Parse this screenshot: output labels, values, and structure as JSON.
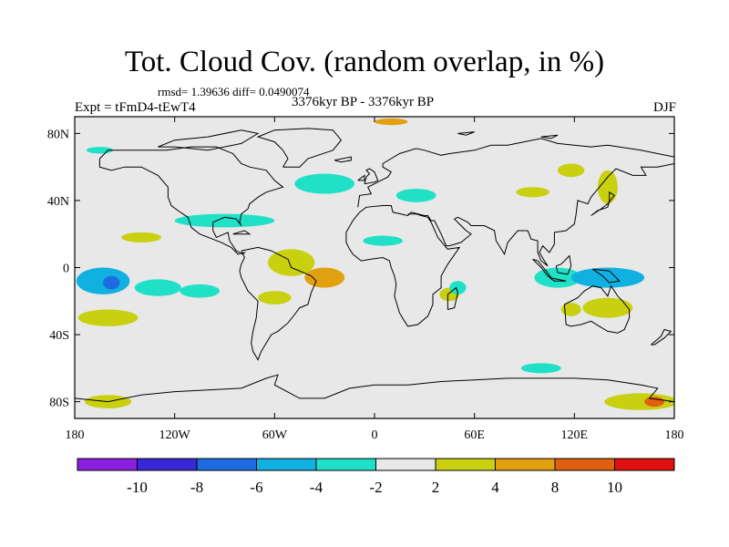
{
  "title": "Tot. Cloud Cov. (random overlap, in %)",
  "stats": "rmsd= 1.39636 diff= 0.0490074",
  "experiment": "Expt = tFmD4-tEwT4",
  "period": "3376kyr BP - 3376kyr BP",
  "season": "DJF",
  "map": {
    "lon_range": [
      -180,
      180
    ],
    "lat_range": [
      -90,
      90
    ],
    "x_ticks": [
      {
        "value": -180,
        "label": "180"
      },
      {
        "value": -120,
        "label": "120W"
      },
      {
        "value": -60,
        "label": "60W"
      },
      {
        "value": 0,
        "label": "0"
      },
      {
        "value": 60,
        "label": "60E"
      },
      {
        "value": 120,
        "label": "120E"
      },
      {
        "value": 180,
        "label": "180"
      }
    ],
    "y_ticks": [
      {
        "value": 80,
        "label": "80N"
      },
      {
        "value": 40,
        "label": "40N"
      },
      {
        "value": 0,
        "label": "0"
      },
      {
        "value": -40,
        "label": "40S"
      },
      {
        "value": -80,
        "label": "80S"
      }
    ],
    "background_color": "#e8e8e8",
    "coastline_color": "#000000"
  },
  "colorbar": {
    "labels": [
      "-10",
      "-8",
      "-6",
      "-4",
      "-2",
      "2",
      "4",
      "8",
      "10"
    ],
    "colors": [
      "#8a1fe0",
      "#3a28d8",
      "#1c6be0",
      "#10b0e0",
      "#20e0c8",
      "#e8e8e8",
      "#c8d010",
      "#e0a010",
      "#e06010",
      "#e01010"
    ]
  },
  "anomalies": [
    {
      "lon": -163,
      "lat": -8,
      "rx": 16,
      "ry": 8,
      "level": 3
    },
    {
      "lon": -158,
      "lat": -9,
      "rx": 5,
      "ry": 4,
      "level": 2
    },
    {
      "lon": -130,
      "lat": -12,
      "rx": 14,
      "ry": 5,
      "level": 4
    },
    {
      "lon": -105,
      "lat": -14,
      "rx": 12,
      "ry": 4,
      "level": 4
    },
    {
      "lon": -140,
      "lat": 18,
      "rx": 12,
      "ry": 3,
      "level": 6
    },
    {
      "lon": -90,
      "lat": 28,
      "rx": 30,
      "ry": 4,
      "level": 4
    },
    {
      "lon": -50,
      "lat": 3,
      "rx": 14,
      "ry": 8,
      "level": 6
    },
    {
      "lon": -30,
      "lat": -6,
      "rx": 12,
      "ry": 6,
      "level": 7
    },
    {
      "lon": -60,
      "lat": -18,
      "rx": 10,
      "ry": 4,
      "level": 6
    },
    {
      "lon": -160,
      "lat": -30,
      "rx": 18,
      "ry": 5,
      "level": 6
    },
    {
      "lon": -30,
      "lat": 50,
      "rx": 18,
      "ry": 6,
      "level": 4
    },
    {
      "lon": 5,
      "lat": 16,
      "rx": 12,
      "ry": 3,
      "level": 4
    },
    {
      "lon": 25,
      "lat": 43,
      "rx": 12,
      "ry": 4,
      "level": 4
    },
    {
      "lon": 110,
      "lat": -6,
      "rx": 14,
      "ry": 6,
      "level": 4
    },
    {
      "lon": 140,
      "lat": -6,
      "rx": 22,
      "ry": 6,
      "level": 3
    },
    {
      "lon": 118,
      "lat": 58,
      "rx": 8,
      "ry": 4,
      "level": 6
    },
    {
      "lon": 140,
      "lat": 48,
      "rx": 6,
      "ry": 10,
      "level": 6
    },
    {
      "lon": 95,
      "lat": 45,
      "rx": 10,
      "ry": 3,
      "level": 6
    },
    {
      "lon": 45,
      "lat": -16,
      "rx": 6,
      "ry": 4,
      "level": 6
    },
    {
      "lon": 50,
      "lat": -12,
      "rx": 5,
      "ry": 4,
      "level": 4
    },
    {
      "lon": 140,
      "lat": -24,
      "rx": 15,
      "ry": 6,
      "level": 6
    },
    {
      "lon": 118,
      "lat": -25,
      "rx": 6,
      "ry": 4,
      "level": 6
    },
    {
      "lon": 160,
      "lat": -80,
      "rx": 22,
      "ry": 5,
      "level": 6
    },
    {
      "lon": 168,
      "lat": -80,
      "rx": 6,
      "ry": 3,
      "level": 8
    },
    {
      "lon": -160,
      "lat": -80,
      "rx": 14,
      "ry": 4,
      "level": 6
    },
    {
      "lon": -165,
      "lat": 70,
      "rx": 8,
      "ry": 2,
      "level": 4
    },
    {
      "lon": 10,
      "lat": 87,
      "rx": 10,
      "ry": 2,
      "level": 7
    },
    {
      "lon": 100,
      "lat": -60,
      "rx": 12,
      "ry": 3,
      "level": 4
    }
  ],
  "coastlines": [
    [
      [
        -165,
        65
      ],
      [
        -160,
        70
      ],
      [
        -140,
        70
      ],
      [
        -125,
        70
      ],
      [
        -110,
        72
      ],
      [
        -95,
        72
      ],
      [
        -85,
        68
      ],
      [
        -80,
        62
      ],
      [
        -75,
        60
      ],
      [
        -65,
        58
      ],
      [
        -60,
        52
      ],
      [
        -55,
        48
      ],
      [
        -65,
        45
      ],
      [
        -70,
        42
      ],
      [
        -75,
        38
      ],
      [
        -76,
        35
      ],
      [
        -80,
        32
      ],
      [
        -81,
        27
      ],
      [
        -80,
        25
      ],
      [
        -83,
        29
      ],
      [
        -90,
        30
      ],
      [
        -97,
        27
      ],
      [
        -97,
        22
      ],
      [
        -95,
        18
      ],
      [
        -88,
        21
      ],
      [
        -87,
        16
      ],
      [
        -83,
        10
      ],
      [
        -79,
        8
      ],
      [
        -78,
        9
      ],
      [
        -82,
        8
      ],
      [
        -86,
        12
      ],
      [
        -92,
        15
      ],
      [
        -105,
        20
      ],
      [
        -110,
        24
      ],
      [
        -112,
        30
      ],
      [
        -115,
        32
      ],
      [
        -118,
        34
      ],
      [
        -122,
        37
      ],
      [
        -124,
        42
      ],
      [
        -124,
        48
      ],
      [
        -130,
        55
      ],
      [
        -140,
        60
      ],
      [
        -150,
        60
      ],
      [
        -158,
        58
      ],
      [
        -165,
        60
      ],
      [
        -165,
        65
      ]
    ],
    [
      [
        -80,
        10
      ],
      [
        -75,
        11
      ],
      [
        -70,
        12
      ],
      [
        -62,
        10
      ],
      [
        -52,
        5
      ],
      [
        -50,
        0
      ],
      [
        -45,
        -2
      ],
      [
        -38,
        -5
      ],
      [
        -35,
        -8
      ],
      [
        -38,
        -15
      ],
      [
        -40,
        -22
      ],
      [
        -45,
        -24
      ],
      [
        -48,
        -28
      ],
      [
        -52,
        -33
      ],
      [
        -58,
        -38
      ],
      [
        -62,
        -40
      ],
      [
        -65,
        -45
      ],
      [
        -68,
        -50
      ],
      [
        -70,
        -55
      ],
      [
        -73,
        -50
      ],
      [
        -74,
        -45
      ],
      [
        -73,
        -38
      ],
      [
        -71,
        -30
      ],
      [
        -70,
        -20
      ],
      [
        -76,
        -14
      ],
      [
        -80,
        -6
      ],
      [
        -81,
        -2
      ],
      [
        -80,
        2
      ],
      [
        -78,
        6
      ],
      [
        -80,
        10
      ]
    ],
    [
      [
        -10,
        36
      ],
      [
        -9,
        43
      ],
      [
        -2,
        44
      ],
      [
        -4,
        48
      ],
      [
        2,
        51
      ],
      [
        8,
        54
      ],
      [
        10,
        57
      ],
      [
        5,
        60
      ],
      [
        5,
        62
      ],
      [
        15,
        68
      ],
      [
        25,
        71
      ],
      [
        30,
        70
      ],
      [
        40,
        67
      ],
      [
        45,
        68
      ],
      [
        60,
        70
      ],
      [
        70,
        73
      ],
      [
        80,
        73
      ],
      [
        100,
        77
      ],
      [
        110,
        74
      ],
      [
        130,
        72
      ],
      [
        140,
        73
      ],
      [
        160,
        70
      ],
      [
        170,
        68
      ],
      [
        180,
        66
      ],
      [
        180,
        62
      ],
      [
        170,
        60
      ],
      [
        160,
        60
      ],
      [
        163,
        55
      ],
      [
        155,
        55
      ],
      [
        145,
        59
      ],
      [
        140,
        54
      ],
      [
        135,
        48
      ],
      [
        130,
        42
      ],
      [
        128,
        38
      ],
      [
        122,
        40
      ],
      [
        121,
        32
      ],
      [
        120,
        26
      ],
      [
        115,
        22
      ],
      [
        108,
        21
      ],
      [
        108,
        14
      ],
      [
        105,
        9
      ],
      [
        101,
        13
      ],
      [
        99,
        9
      ],
      [
        102,
        4
      ],
      [
        104,
        1
      ],
      [
        100,
        4
      ],
      [
        98,
        9
      ],
      [
        98,
        16
      ],
      [
        94,
        17
      ],
      [
        92,
        22
      ],
      [
        86,
        22
      ],
      [
        80,
        15
      ],
      [
        78,
        8
      ],
      [
        73,
        16
      ],
      [
        72,
        22
      ],
      [
        66,
        25
      ],
      [
        58,
        25
      ],
      [
        56,
        27
      ],
      [
        50,
        30
      ],
      [
        48,
        29
      ],
      [
        55,
        22
      ],
      [
        58,
        20
      ],
      [
        52,
        15
      ],
      [
        45,
        13
      ],
      [
        43,
        13
      ],
      [
        40,
        20
      ],
      [
        36,
        28
      ],
      [
        34,
        28
      ],
      [
        32,
        31
      ],
      [
        30,
        31
      ],
      [
        22,
        33
      ],
      [
        20,
        31
      ],
      [
        11,
        33
      ],
      [
        10,
        37
      ],
      [
        5,
        37
      ],
      [
        -5,
        36
      ],
      [
        -9,
        33
      ],
      [
        -13,
        28
      ],
      [
        -17,
        21
      ],
      [
        -17,
        15
      ],
      [
        -15,
        11
      ],
      [
        -13,
        8
      ],
      [
        -8,
        4
      ],
      [
        -2,
        5
      ],
      [
        5,
        6
      ],
      [
        9,
        4
      ],
      [
        10,
        0
      ],
      [
        12,
        -5
      ],
      [
        13,
        -10
      ],
      [
        12,
        -17
      ],
      [
        15,
        -27
      ],
      [
        18,
        -32
      ],
      [
        20,
        -35
      ],
      [
        26,
        -34
      ],
      [
        32,
        -29
      ],
      [
        35,
        -22
      ],
      [
        35,
        -16
      ],
      [
        40,
        -12
      ],
      [
        40,
        -5
      ],
      [
        44,
        2
      ],
      [
        51,
        12
      ],
      [
        44,
        11
      ],
      [
        43,
        12
      ],
      [
        38,
        18
      ],
      [
        34,
        27
      ],
      [
        32,
        30
      ],
      [
        28,
        31
      ],
      [
        25,
        32
      ],
      [
        20,
        32
      ]
    ],
    [
      [
        114,
        -22
      ],
      [
        115,
        -34
      ],
      [
        118,
        -35
      ],
      [
        124,
        -34
      ],
      [
        130,
        -32
      ],
      [
        135,
        -35
      ],
      [
        140,
        -38
      ],
      [
        146,
        -39
      ],
      [
        150,
        -37
      ],
      [
        153,
        -30
      ],
      [
        153,
        -25
      ],
      [
        149,
        -20
      ],
      [
        146,
        -17
      ],
      [
        144,
        -14
      ],
      [
        142,
        -11
      ],
      [
        140,
        -17
      ],
      [
        136,
        -12
      ],
      [
        131,
        -11
      ],
      [
        126,
        -14
      ],
      [
        122,
        -18
      ],
      [
        114,
        -22
      ]
    ],
    [
      [
        -180,
        -78
      ],
      [
        -160,
        -80
      ],
      [
        -140,
        -76
      ],
      [
        -120,
        -74
      ],
      [
        -100,
        -73
      ],
      [
        -80,
        -72
      ],
      [
        -65,
        -66
      ],
      [
        -58,
        -64
      ],
      [
        -60,
        -70
      ],
      [
        -45,
        -78
      ],
      [
        -30,
        -78
      ],
      [
        -15,
        -72
      ],
      [
        0,
        -70
      ],
      [
        20,
        -70
      ],
      [
        40,
        -68
      ],
      [
        60,
        -67
      ],
      [
        80,
        -66
      ],
      [
        100,
        -66
      ],
      [
        120,
        -66
      ],
      [
        140,
        -67
      ],
      [
        160,
        -70
      ],
      [
        170,
        -72
      ],
      [
        165,
        -78
      ],
      [
        180,
        -80
      ]
    ],
    [
      [
        -55,
        60
      ],
      [
        -45,
        60
      ],
      [
        -40,
        65
      ],
      [
        -25,
        70
      ],
      [
        -20,
        76
      ],
      [
        -25,
        82
      ],
      [
        -40,
        83
      ],
      [
        -60,
        82
      ],
      [
        -70,
        78
      ],
      [
        -60,
        75
      ],
      [
        -55,
        70
      ],
      [
        -52,
        65
      ],
      [
        -55,
        60
      ]
    ],
    [
      [
        -6,
        50
      ],
      [
        -5,
        54
      ],
      [
        -3,
        56
      ],
      [
        -5,
        58
      ],
      [
        -3,
        59
      ],
      [
        0,
        57
      ],
      [
        2,
        52
      ],
      [
        0,
        51
      ],
      [
        -6,
        50
      ]
    ],
    [
      [
        -10,
        52
      ],
      [
        -6,
        55
      ],
      [
        -6,
        52
      ],
      [
        -10,
        52
      ]
    ],
    [
      [
        -24,
        64
      ],
      [
        -14,
        66
      ],
      [
        -14,
        64
      ],
      [
        -20,
        63
      ],
      [
        -24,
        64
      ]
    ],
    [
      [
        130,
        31
      ],
      [
        134,
        34
      ],
      [
        140,
        36
      ],
      [
        141,
        40
      ],
      [
        141,
        45
      ],
      [
        144,
        43
      ],
      [
        140,
        38
      ],
      [
        136,
        35
      ],
      [
        130,
        31
      ]
    ],
    [
      [
        44,
        -25
      ],
      [
        48,
        -24
      ],
      [
        50,
        -15
      ],
      [
        49,
        -12
      ],
      [
        44,
        -16
      ],
      [
        44,
        -25
      ]
    ],
    [
      [
        166,
        -46
      ],
      [
        172,
        -41
      ],
      [
        174,
        -37
      ],
      [
        178,
        -38
      ],
      [
        174,
        -42
      ],
      [
        168,
        -46
      ],
      [
        166,
        -46
      ]
    ],
    [
      [
        95,
        5
      ],
      [
        98,
        4
      ],
      [
        103,
        -2
      ],
      [
        106,
        -6
      ],
      [
        104,
        -5
      ],
      [
        100,
        0
      ],
      [
        95,
        5
      ]
    ],
    [
      [
        105,
        -6
      ],
      [
        110,
        -7
      ],
      [
        115,
        -8
      ],
      [
        108,
        -8
      ],
      [
        105,
        -6
      ]
    ],
    [
      [
        109,
        1
      ],
      [
        110,
        -3
      ],
      [
        116,
        -4
      ],
      [
        118,
        1
      ],
      [
        117,
        7
      ],
      [
        112,
        2
      ],
      [
        109,
        1
      ]
    ],
    [
      [
        131,
        -1
      ],
      [
        141,
        -2
      ],
      [
        147,
        -8
      ],
      [
        141,
        -9
      ],
      [
        137,
        -5
      ],
      [
        131,
        -1
      ]
    ],
    [
      [
        -85,
        20
      ],
      [
        -75,
        20
      ],
      [
        -78,
        22
      ],
      [
        -85,
        20
      ]
    ],
    [
      [
        -130,
        72
      ],
      [
        -120,
        76
      ],
      [
        -100,
        78
      ],
      [
        -80,
        82
      ],
      [
        -70,
        80
      ],
      [
        -80,
        74
      ],
      [
        -100,
        70
      ],
      [
        -120,
        72
      ],
      [
        -130,
        72
      ]
    ],
    [
      [
        100,
        78
      ],
      [
        110,
        79
      ],
      [
        106,
        77
      ],
      [
        100,
        78
      ]
    ],
    [
      [
        50,
        80
      ],
      [
        60,
        81
      ],
      [
        55,
        79
      ],
      [
        50,
        80
      ]
    ]
  ]
}
